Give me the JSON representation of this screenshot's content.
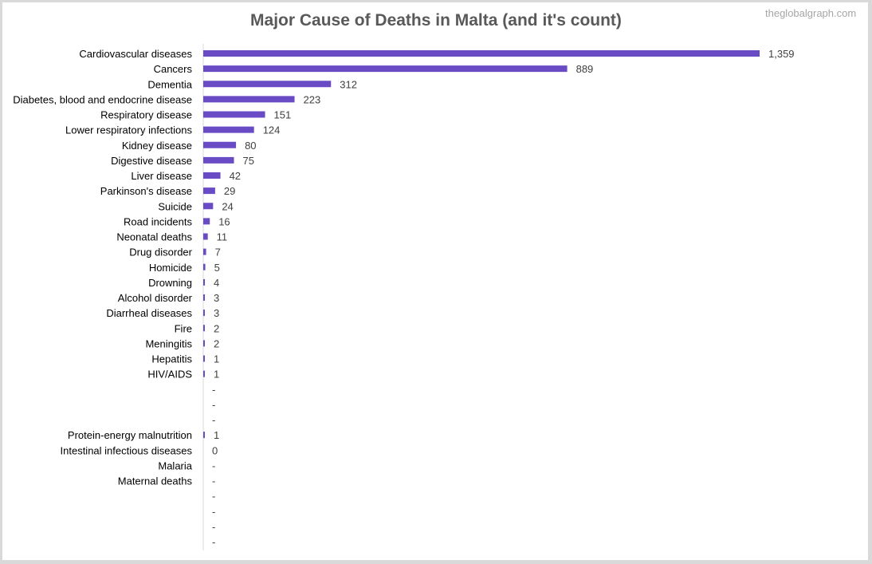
{
  "header": {
    "title": "Major Cause of Deaths in Malta (and it's count)",
    "watermark": "theglobalgraph.com"
  },
  "colors": {
    "bar": "#6a4bc6",
    "axis": "#d9d9d9"
  },
  "chart_data": {
    "type": "bar",
    "orientation": "horizontal",
    "title": "Major Cause of Deaths in Malta (and it's count)",
    "categories": [
      "Cardiovascular diseases",
      "Cancers",
      "Dementia",
      "Diabetes, blood and endocrine disease",
      "Respiratory disease",
      "Lower respiratory infections",
      "Kidney disease",
      "Digestive disease",
      "Liver disease",
      "Parkinson's disease",
      "Suicide",
      "Road incidents",
      "Neonatal deaths",
      "Drug disorder",
      "Homicide",
      "Drowning",
      "Alcohol disorder",
      "Diarrheal diseases",
      "Fire",
      "Meningitis",
      "Hepatitis",
      "HIV/AIDS",
      "",
      "",
      "",
      "Protein-energy malnutrition",
      "Intestinal infectious diseases",
      "Malaria",
      "Maternal deaths",
      "",
      "",
      "",
      ""
    ],
    "values": [
      1359,
      889,
      312,
      223,
      151,
      124,
      80,
      75,
      42,
      29,
      24,
      16,
      11,
      7,
      5,
      4,
      3,
      3,
      2,
      2,
      1,
      1,
      null,
      null,
      null,
      1,
      0,
      null,
      null,
      null,
      null,
      null,
      null
    ],
    "labels": [
      "1,359",
      "889",
      "312",
      "223",
      "151",
      "124",
      "80",
      "75",
      "42",
      "29",
      "24",
      "16",
      "11",
      "7",
      "5",
      "4",
      "3",
      "3",
      "2",
      "2",
      "1",
      "1",
      "-",
      "-",
      "-",
      "1",
      "0",
      "-",
      "-",
      "-",
      "-",
      "-",
      "-"
    ],
    "xlim": [
      0,
      1359
    ],
    "grid": false,
    "legend": "none"
  }
}
